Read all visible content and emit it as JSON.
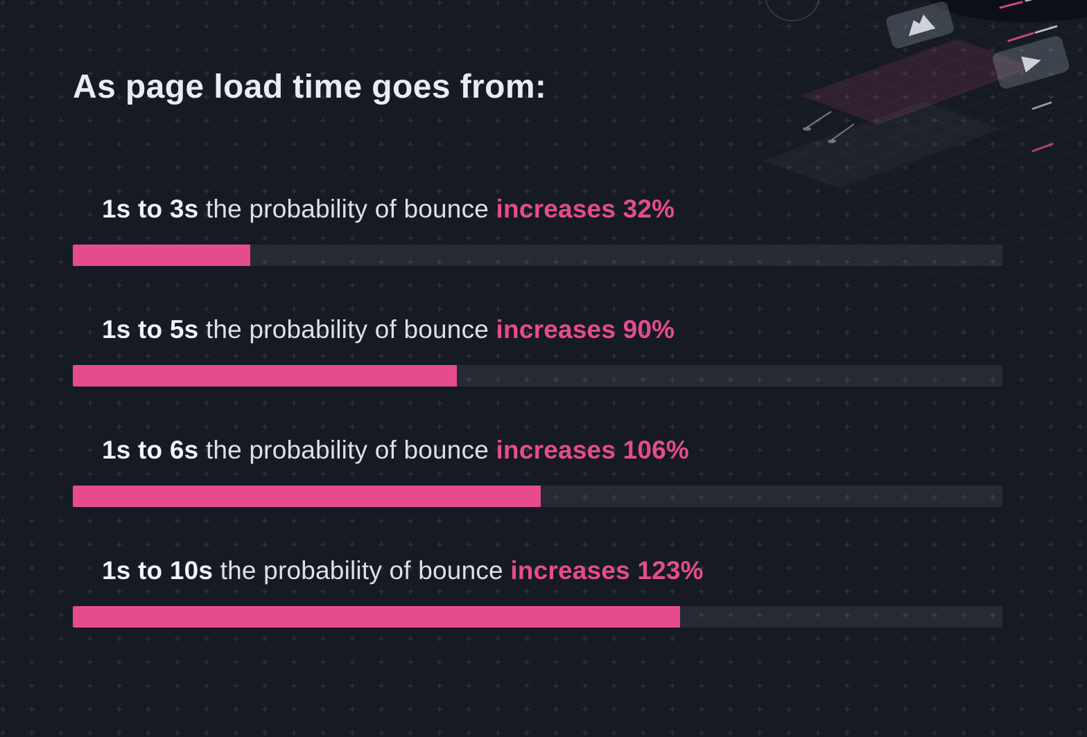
{
  "title": "As page load time goes from:",
  "colors": {
    "background": "#151a23",
    "accent_pink": "#e64c8d",
    "bar_track": "#262b34",
    "text_primary": "#f1f3f6",
    "text_secondary": "#dde1e7"
  },
  "chart_data": {
    "type": "bar",
    "orientation": "horizontal",
    "title": "As page load time goes from:",
    "categories": [
      "1s to 3s",
      "1s to 5s",
      "1s to 6s",
      "1s to 10s"
    ],
    "values": [
      32,
      90,
      106,
      123
    ],
    "value_unit": "% increase in probability of bounce",
    "legend": "none",
    "grid": "off",
    "rows": [
      {
        "range": "1s to 3s",
        "middle": "the probability of bounce",
        "highlight": "increases 32%",
        "increase_percent": 32,
        "fill_percent": 19.1
      },
      {
        "range": "1s to 5s",
        "middle": "the probability of bounce",
        "highlight": "increases 90%",
        "increase_percent": 90,
        "fill_percent": 41.3
      },
      {
        "range": "1s to 6s",
        "middle": "the probability of bounce",
        "highlight": "increases 106%",
        "increase_percent": 106,
        "fill_percent": 50.3
      },
      {
        "range": "1s to 10s",
        "middle": "the probability of bounce",
        "highlight": "increases 123%",
        "increase_percent": 123,
        "fill_percent": 65.3
      }
    ]
  },
  "decoration": {
    "icons": [
      "mountain-chart-icon",
      "play-icon",
      "pin-marker-icon"
    ],
    "pattern": "plus-dot-grid with isometric line grid, pink tinted plane, floating cards"
  }
}
